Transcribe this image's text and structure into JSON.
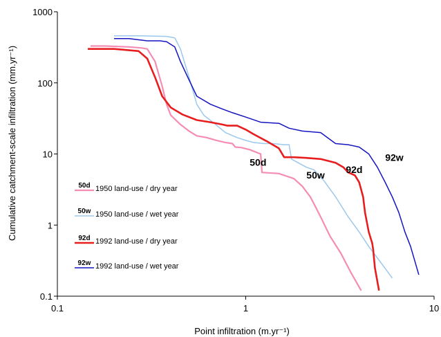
{
  "chart_data": {
    "type": "line",
    "x_scale": "log",
    "y_scale": "log",
    "xlim": [
      0.1,
      10
    ],
    "ylim": [
      0.1,
      1000
    ],
    "grid": false,
    "legend_placement": "bottom-left",
    "xlabel": "Point infiltration (m.yr⁻¹)",
    "ylabel": "Cumulative catchment-scale infiltration (mm.yr⁻¹)",
    "x_ticks": [
      "0.1",
      "1",
      "10"
    ],
    "y_ticks": [
      "0.1",
      "1",
      "10",
      "100",
      "1000"
    ],
    "series": [
      {
        "name": "1950 land-use / dry year",
        "code": "50d",
        "color": "#f48cb4",
        "x": [
          0.15,
          0.18,
          0.24,
          0.28,
          0.3,
          0.33,
          0.36,
          0.38,
          0.4,
          0.45,
          0.5,
          0.55,
          0.62,
          0.7,
          0.78,
          0.85,
          0.88,
          0.95,
          1.05,
          1.2,
          1.22,
          1.5,
          1.8,
          2.0,
          2.2,
          2.3,
          2.5,
          2.8,
          3.2,
          3.6,
          4.1
        ],
        "y": [
          330,
          330,
          320,
          310,
          300,
          200,
          90,
          50,
          35,
          26,
          21,
          18,
          17,
          15.5,
          14.5,
          14,
          12.5,
          12.3,
          11.5,
          10,
          5.5,
          5.3,
          4.5,
          3.5,
          2.5,
          2.0,
          1.3,
          0.7,
          0.4,
          0.22,
          0.12
        ]
      },
      {
        "name": "1950 land-use / wet year",
        "code": "50w",
        "color": "#9ac8ee",
        "x": [
          0.2,
          0.28,
          0.38,
          0.42,
          0.45,
          0.5,
          0.55,
          0.6,
          0.68,
          0.78,
          0.9,
          1.0,
          1.1,
          1.25,
          1.4,
          1.6,
          1.7,
          1.75,
          1.9,
          2.1,
          2.3,
          2.6,
          3.0,
          3.5,
          4.0,
          4.5,
          5.2,
          6.0
        ],
        "y": [
          460,
          460,
          450,
          430,
          300,
          120,
          50,
          35,
          27,
          20,
          17,
          15.5,
          14.5,
          14,
          14,
          13.5,
          13.5,
          8.5,
          7.5,
          6.5,
          6.0,
          4.2,
          2.5,
          1.3,
          0.8,
          0.5,
          0.3,
          0.18
        ]
      },
      {
        "name": "1992 land-use / dry year",
        "code": "92d",
        "color": "#e81d1d",
        "x": [
          0.145,
          0.2,
          0.27,
          0.3,
          0.33,
          0.36,
          0.4,
          0.46,
          0.55,
          0.65,
          0.75,
          0.8,
          0.9,
          1.0,
          1.1,
          1.3,
          1.5,
          1.6,
          1.8,
          2.1,
          2.5,
          3.0,
          3.3,
          3.5,
          3.8,
          4.0,
          4.2,
          4.3,
          4.5,
          4.7,
          4.75,
          4.85,
          5.1
        ],
        "y": [
          300,
          300,
          280,
          220,
          120,
          65,
          45,
          36,
          30,
          28,
          26,
          25,
          25,
          22,
          19,
          15,
          12,
          9,
          9,
          8.8,
          8.5,
          7.5,
          6.5,
          5.5,
          5.0,
          4.0,
          2.5,
          1.5,
          0.8,
          0.55,
          0.45,
          0.25,
          0.12
        ]
      },
      {
        "name": "1992 land-use / wet year",
        "code": "92w",
        "color": "#1414c2",
        "x": [
          0.2,
          0.24,
          0.3,
          0.35,
          0.38,
          0.42,
          0.45,
          0.5,
          0.55,
          0.65,
          0.75,
          0.85,
          1.0,
          1.2,
          1.5,
          1.7,
          2.0,
          2.5,
          3.0,
          3.5,
          4.0,
          4.5,
          5.0,
          5.5,
          6.0,
          6.5,
          7.0,
          7.5,
          8.3
        ],
        "y": [
          420,
          420,
          390,
          390,
          380,
          320,
          200,
          110,
          65,
          50,
          43,
          38,
          33,
          28,
          27,
          23,
          21,
          20,
          14,
          13.5,
          12.5,
          10,
          6.5,
          4.0,
          2.5,
          1.5,
          0.8,
          0.5,
          0.2
        ]
      }
    ]
  },
  "curve_labels": [
    {
      "text": "50d",
      "x": 1.05,
      "y": 6.8
    },
    {
      "text": "50w",
      "x": 2.1,
      "y": 4.5
    },
    {
      "text": "92d",
      "x": 3.4,
      "y": 5.4
    },
    {
      "text": "92w",
      "x": 5.5,
      "y": 8.0
    }
  ]
}
